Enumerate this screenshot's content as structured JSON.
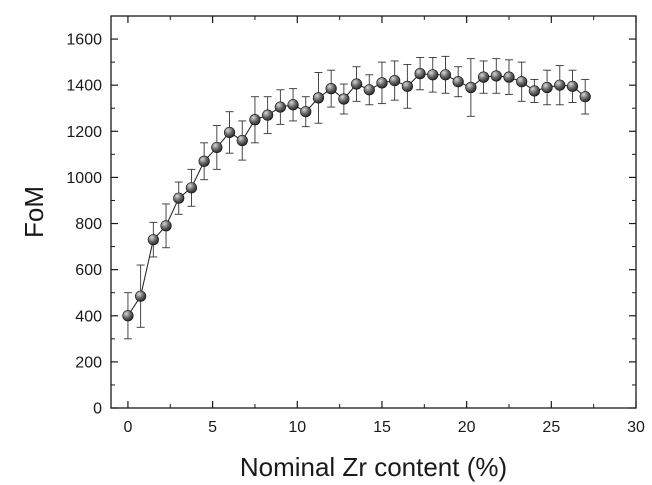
{
  "chart_data": {
    "type": "scatter",
    "title": "",
    "xlabel": "Nominal Zr content (%)",
    "ylabel": "FoM",
    "xlim": [
      -1,
      30
    ],
    "ylim": [
      0,
      1700
    ],
    "xticks": [
      0,
      5,
      10,
      15,
      20,
      25,
      30
    ],
    "yticks": [
      0,
      200,
      400,
      600,
      800,
      1000,
      1200,
      1400,
      1600
    ],
    "grid": false,
    "legend": "none",
    "colors": {
      "marker": "#2b2b2b",
      "marker_highlight": "#d8d8d8",
      "line": "#1a1a1a",
      "errorbar": "#333333",
      "axis": "#1a1a1a"
    },
    "series": [
      {
        "x": [
          0,
          0.75,
          1.5,
          2.25,
          3,
          3.75,
          4.5,
          5.25,
          6,
          6.75,
          7.5,
          8.25,
          9,
          9.75,
          10.5,
          11.25,
          12,
          12.75,
          13.5,
          14.25,
          15,
          15.75,
          16.5,
          17.25,
          18,
          18.75,
          19.5,
          20.25,
          21,
          21.75,
          22.5,
          23.25,
          24,
          24.75,
          25.5,
          26.25,
          27
        ],
        "y": [
          400,
          485,
          730,
          790,
          910,
          955,
          1070,
          1130,
          1195,
          1160,
          1250,
          1270,
          1305,
          1315,
          1285,
          1345,
          1385,
          1340,
          1405,
          1380,
          1410,
          1420,
          1395,
          1450,
          1445,
          1445,
          1415,
          1390,
          1435,
          1440,
          1435,
          1415,
          1375,
          1390,
          1400,
          1395,
          1350
        ],
        "error": [
          100,
          135,
          75,
          95,
          70,
          80,
          80,
          95,
          90,
          85,
          100,
          80,
          75,
          70,
          65,
          110,
          80,
          65,
          75,
          65,
          90,
          85,
          95,
          70,
          75,
          80,
          65,
          125,
          70,
          75,
          75,
          85,
          50,
          75,
          85,
          70,
          75
        ]
      }
    ]
  }
}
